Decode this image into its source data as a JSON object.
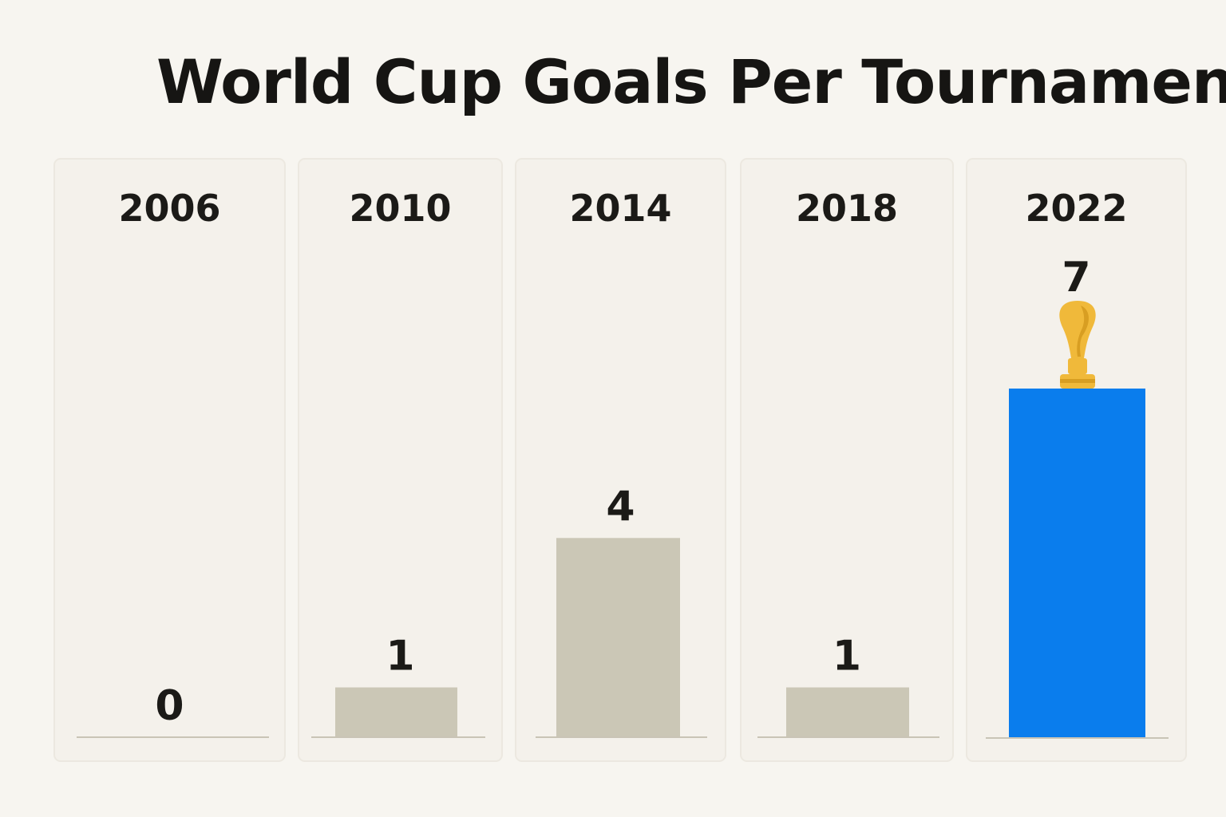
{
  "title": "World Cup Goals Per Tournament",
  "chart_data": {
    "type": "bar",
    "title": "World Cup Goals Per Tournament",
    "categories": [
      "2006",
      "2010",
      "2014",
      "2018",
      "2022"
    ],
    "values": [
      0,
      1,
      4,
      1,
      7
    ],
    "data_labels": [
      "0",
      "1",
      "4",
      "1",
      "7"
    ],
    "ylim": [
      0,
      7
    ],
    "grid": false,
    "legend": "none",
    "highlight_index": 4,
    "highlight_icon": "trophy-icon"
  },
  "colors": {
    "bar_default": "#cbc7b6",
    "bar_highlight": "#0a7ded",
    "trophy": "#f0b93a",
    "trophy_shade": "#d89e22"
  }
}
